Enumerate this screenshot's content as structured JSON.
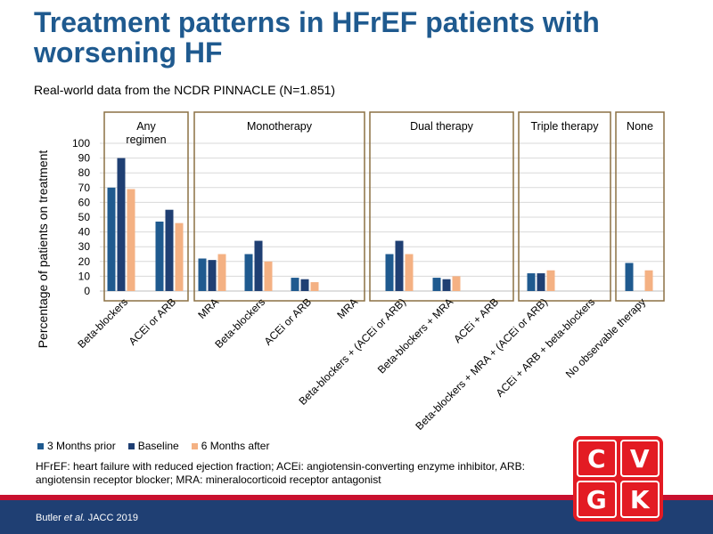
{
  "title": "Treatment patterns in HFrEF patients with worsening HF",
  "subtitle": "Real-world data from the NCDR PINNACLE (N=1.851)",
  "colors": {
    "prior": "#1f5a8f",
    "baseline": "#1f3f73",
    "after": "#f4b183",
    "frame": "#8b7043",
    "title": "#1f5a8f"
  },
  "chart_data": {
    "type": "bar",
    "ylabel": "Percentage of patients on treatment",
    "ylim": [
      0,
      100
    ],
    "yticks": [
      "0",
      "10",
      "20",
      "30",
      "40",
      "50",
      "60",
      "70",
      "80",
      "90",
      "100"
    ],
    "grid": true,
    "legend_position": "bottom-left",
    "groups": [
      {
        "label": "Any regimen",
        "categories": [
          "Beta-blockers",
          "ACEi or ARB"
        ]
      },
      {
        "label": "Monotherapy",
        "categories": [
          "MRA",
          "Beta-blockers",
          "ACEi or ARB",
          "MRA"
        ]
      },
      {
        "label": "Dual therapy",
        "categories": [
          "Beta-blockers + (ACEi or ARB)",
          "Beta-blockers + MRA",
          "ACEi + ARB"
        ]
      },
      {
        "label": "Triple therapy",
        "categories": [
          "Beta-blockers + MRA + (ACEi or ARB)",
          "ACEi + ARB + beta-blockers"
        ]
      },
      {
        "label": "None",
        "categories": [
          "No observable therapy"
        ]
      }
    ],
    "categories": [
      "Beta-blockers",
      "ACEi or ARB",
      "MRA",
      "Beta-blockers",
      "ACEi or ARB",
      "MRA",
      "Beta-blockers + (ACEi or ARB)",
      "Beta-blockers + MRA",
      "ACEi + ARB",
      "Beta-blockers + MRA + (ACEi or ARB)",
      "ACEi + ARB + beta-blockers",
      "No observable therapy"
    ],
    "series": [
      {
        "name": "3 Months prior",
        "values": [
          70,
          47,
          22,
          25,
          9,
          0,
          25,
          9,
          0,
          12,
          0,
          19
        ]
      },
      {
        "name": "Baseline",
        "values": [
          90,
          55,
          21,
          34,
          8,
          0,
          34,
          8,
          0,
          12,
          0,
          0
        ]
      },
      {
        "name": "6 Months after",
        "values": [
          69,
          46,
          25,
          20,
          6,
          0,
          25,
          10,
          0,
          14,
          0,
          14
        ]
      }
    ]
  },
  "footnote": "HFrEF: heart failure with reduced ejection fraction; ACEi: angiotensin-converting enzyme inhibitor, ARB: angiotensin receptor blocker; MRA: mineralocorticoid receptor antagonist",
  "citation": {
    "authors": "Butler ",
    "etal": "et al.",
    "journal": " JACC 2019"
  },
  "logo": {
    "letters": [
      "C",
      "V",
      "G",
      "K"
    ]
  }
}
